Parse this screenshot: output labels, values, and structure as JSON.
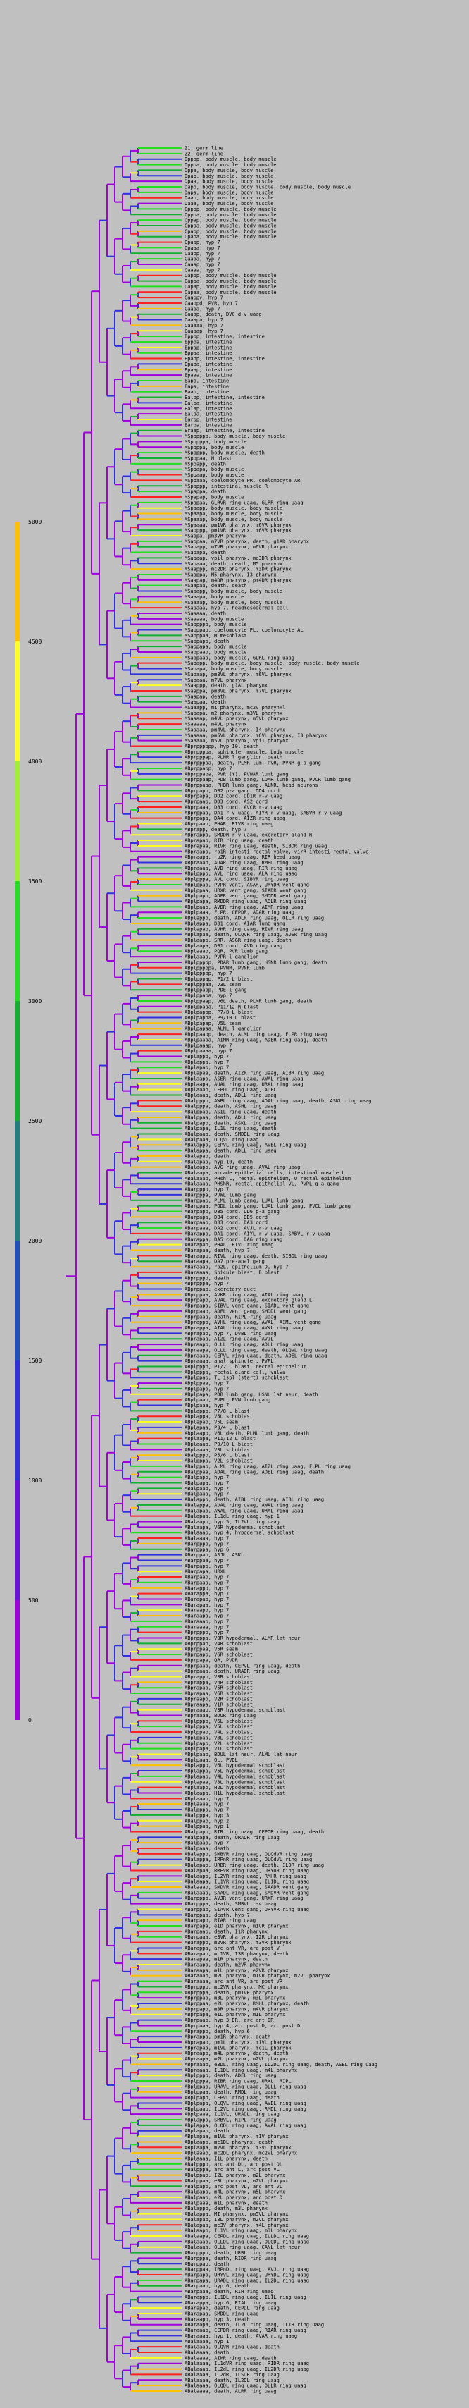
{
  "legend": {
    "title": "",
    "ticks": [
      "0",
      "500",
      "1000",
      "1500",
      "2000",
      "2500",
      "3000",
      "3500",
      "4000",
      "4500",
      "5000"
    ],
    "colors": [
      "#a000e0",
      "#6a10e0",
      "#3030e0",
      "#2050c0",
      "#208080",
      "#10b030",
      "#20e020",
      "#a0f030",
      "#ffff20",
      "#ffc000",
      "#ff6000"
    ]
  },
  "tree": {
    "branch_colors": [
      "#a000e0",
      "#3030e0",
      "#10b030",
      "#20e020",
      "#ffff20",
      "#ffc000",
      "#ff2020"
    ],
    "leaves": [
      "Z1, germ line",
      "Z2, germ line",
      "Dpppp, body muscle, body muscle",
      "Dpppa, body muscle, body muscle",
      "Dppa, body muscle, body muscle",
      "Dpap, body muscle, body muscle",
      "Dpaa, body muscle, body muscle",
      "Dapp, body muscle, body muscle, body muscle, body muscle",
      "Dapa, body muscle, body muscle",
      "Daap, body muscle, body muscle",
      "Daaa, body muscle, body muscle",
      "Cpppp, body muscle, body muscle",
      "Cpppa, body muscle, body muscle",
      "Cppap, body muscle, body muscle",
      "Cppaa, body muscle, body muscle",
      "Cpapp, body muscle, body muscle",
      "Cpapa, body muscle, body muscle",
      "Cpaap, hyp 7",
      "Cpaaa, hyp 7",
      "Caapp, hyp 7",
      "Caapa, hyp 7",
      "Caaap, hyp 7",
      "Caaaa, hyp 7",
      "Cappp, body muscle, body muscle",
      "Cappa, body muscle, body muscle",
      "Capap, body muscle, body muscle",
      "Capaa, body muscle, body muscle",
      "Caappv, hyp 7",
      "Caappd, PVR, hyp 7",
      "Caapa, hyp 7",
      "Caaap, death, DVC d-v uaag",
      "Caaapa, hyp 7",
      "Caaaaa, hyp 7",
      "Caaaap, hyp 7",
      "Epppp, intestine, intestine",
      "Epppa, intestine",
      "Eppap, intestine",
      "Eppaa, intestine",
      "Epapp, intestine, intestine",
      "Epapa, intestine",
      "Epaap, intestine",
      "Epaaa, intestine",
      "Eapp, intestine",
      "Eapa, intestine",
      "Eaap, intestine",
      "Ealpp, intestine, intestine",
      "Ealpa, intestine",
      "Ealap, intestine",
      "Ealaa, intestine",
      "Earpp, intestine",
      "Earpa, intestine",
      "Eraap, intestine, intestine",
      "MSpppppp, body muscle, body muscle",
      "MSpppppa, body muscle",
      "MSppppa, body muscle",
      "MSppppp, body muscle, death",
      "MSpppaa, M blast",
      "MSppapp, death",
      "MSppapa, body muscle",
      "MSppaap, body muscle",
      "MSppaaa, coelomocyte PR, coelomocyte AR",
      "MSpappp, intestinal muscle R",
      "MSpappa, death",
      "MSpapap, body muscle",
      "MSpapaa, GLRVR ring uaag, GLRR ring uaag",
      "MSpaapp, body muscle, body muscle",
      "MSpaapa, body muscle, body muscle",
      "MSpaaap, body muscle, body muscle",
      "MSpaaaa, pm1VR pharynx, m6VR pharynx",
      "MSapppp, pm1VR pharynx, m6VR pharynx",
      "MSappa, pm3VR pharynx",
      "MSappaa, m7VR pharynx, death, g1AR pharynx",
      "MSapapp, m7VR pharynx, m6VR pharynx",
      "MSapapa, death",
      "MSapaap, vpil pharynx, mc3DR pharynx",
      "MSapaaa, death, death, M5 pharynx",
      "MSaappp, mc2DR pharynx, m3DR pharynx",
      "MSaappa, M5 pharynx, I3 pharynx",
      "MSaapap, m4DR pharynx, pm4DR pharynx",
      "MSaapaa, death, death",
      "MSaaapp, body muscle, body muscle",
      "MSaaapa, body muscle",
      "MSaaaap, body muscle, body muscle",
      "MSaaaaa, hyp 7, headmesodermal cell",
      "MSaaaaa, death",
      "MSaaaaa, body muscle",
      "MSappppp, body muscle",
      "MSapppap, coelomocyte PL, coelomocyte AL",
      "MSapppaa, M mesoblast",
      "MSappapp, death",
      "MSappapa, body muscle",
      "MSappaap, body muscle",
      "MSappaaa, body muscle, GLRL ring uaag",
      "MSapapp, body muscle, body muscle, body muscle, body muscle",
      "MSapapa, body muscle, body muscle",
      "MSapaap, pm3VL pharynx, m6VL pharynx",
      "MSapaaa, m7VL pharynx",
      "MSaappp, death, g1AL pharynx",
      "MSaappa, pm3VL pharynx, m7VL pharynx",
      "MSaapap, death",
      "MSaapaa, death",
      "MSaaapp, m1 pharynx, mc2V pharynxl",
      "MSaaapa, m2 pharynx, m3VL pharynx",
      "MSaaaap, m4VL pharynx, m5VL pharynx",
      "MSaaaaa, m4VL pharynx",
      "MSaaaaa, pm4VL pharynx, I4 pharynx",
      "MSaaaaa, pm5VL pharynx, m6VL pharynx, I3 pharynx",
      "MSaaaaa, m5VL pharynx, vpi1 pharynx",
      "ABprpppppp, hyp 10, death",
      "ABprppppa, sphincter muscle, body muscle",
      "ABprpppap, PLNR l ganglion, death",
      "ABprpppaa, death, PLMR lum, PVR, PVNR g-a gang",
      "ABprppapp, hyp 7",
      "ABprppapa, PVR (Y), PVWAR lumb gang",
      "ABprppaap, PDB lumb gang, LUAR lumb gang, PVCR lumb gang",
      "ABprppaaa, PHBR lumb gang, ALNR, head neurons",
      "ABprpapp, DB2 p-a gang, DD4 cord",
      "ABprpapa, DD2 cord, DD1R r-v uaag",
      "ABprpaap, DD3 cord, AS2 cord",
      "ABprpaaa, DB3 cord, AVCR r-v uaag",
      "ABprppaa, DA1 r-v uaag, AIYR r-v uaag, SABVR r-v uaag",
      "ABprpapa, DA4 cord, AIZR ring uaag",
      "ABprpaap, PHAR, RIVR ring uaag",
      "ABprapp, death, hyp 7",
      "ABprappa, SMDDR r-v uaag, excretory gland R",
      "ABprapap, RIR ring uaag, death",
      "ABprapaa, RIVR ring uaag, death, SIBDR ring uaag",
      "ABpraapp, rp1R intesti-rectal valve, virR intesti-rectal valve",
      "ABpraapa, rp2R ring uaag, RIR head uaag",
      "ABpraaap, AUAR ring uaag, RMED ring uaag",
      "ABpraaaa, AVD ring uaag, RIR ring uaag",
      "ABplpppp, AVL ring uaag, ALA ring uaag",
      "ABplpppa, AVL cord, SIBVR ring uaag",
      "ABplppap, PVPR vent, ASAR, URYDR vent gang",
      "ABplppaa, URXR vent gang, SIADR vent gang",
      "ABplpapp, ADFR vent gang, SMDDR vent gang",
      "ABplpapa, RMDDR ring uaag, ADLR ring uaag",
      "ABplpaap, AVDR ring uaag, AIMR ring uaag",
      "ABplpaaa, FLPR, CEPDR, ADAR ring uaag",
      "ABplappp, death, ADLR ring uaag, OLLR ring uaag",
      "ABplappa, DB1 cord, AIAR lumb gang",
      "ABplapap, AVHR ring uaag, RIVR ring uaag",
      "ABplapaa, death, OLQVR ring uaag, ADER ring uaag",
      "ABplaapp, SRR, ASGR ring uaag, death",
      "ABplaapa, DB1 cord, AVD ring uaag",
      "ABplaaap, PQR, PVR lumb gang",
      "ABplaaaa, PVPR l ganglion",
      "ABplppppp, PDAR lumb gang, HSNR lumb gang, death",
      "ABplpppppa, PVWR, PVNR lumb",
      "ABplppppp, hyp 7",
      "ABplpppap, P1/2 L blast",
      "ABplpppaa, V3L seam",
      "ABplppapp, PDE l gang",
      "ABplppapa, hyp 7",
      "ABplppaap, V6L death, PLMR lumb gang, death",
      "ABplppaaa, P11/12 R blast",
      "ABplpappp, P7/8 L blast",
      "ABplpappa, P9/10 L blast",
      "ABplpapap, V5L seam",
      "ABplpapaa, ALNL l ganglion",
      "ABplpaapp, death, ALML ring uaag, FLPR ring uaag",
      "ABplpaapa, AIMR ring uaag, ADER ring uaag, death",
      "ABplpaaap, hyp 7",
      "ABplpaaaa, hyp 7",
      "ABplappp, hyp 7",
      "ABplappa, hyp 7",
      "ABplapap, hyp 7",
      "ABplapaa, death, AIZR ring uaag, AIBR ring uaag",
      "ABplaapp, ASER ring uaag, AWAL ring uaag",
      "ABplaapa, AUAL ring uaag, URAL ring uaag",
      "ABplaaap, CEPDL ring uaag, ADFL",
      "ABplaaaa, death, ADLL ring uaag",
      "ABalpppp, AWBL ring uaag, ADAL ring uaag, death, ASKL ring uaag",
      "ABalpppa, death, ASHL ring uaag",
      "ABalppap, ASIL ring uaag, death",
      "ABalppaa, death, ADLL ring uaag",
      "ABalpapp, death, ASKL ring uaag",
      "ABalpapa, IL1L ring uaag, death",
      "ABalpaap, death, SMDDL ring uaag",
      "ABalpaaa, OLQVL ring uaag",
      "ABalappp, CEPVL ring uaag, AVEL ring uaag",
      "ABalappa, death, ADLL ring uaag",
      "ABalapap, death",
      "ABalapaa, hyp 10, death",
      "ABalaapp, AVG ring uaag, AVAL ring uaag",
      "ABalaapa, arcade epithelial cells, intestinal muscle L",
      "ABalaaap, PHsh L, rectal epithelium, U rectal epithelium",
      "ABalaaaa, PHShR, rectal epithelial VL, PVPL g-a gang",
      "ABarpppp, hyp 7",
      "ABarpppa, PVWL lumb gang",
      "ABarppap, PLML lumb gang, LUAL lumb gang",
      "ABarppaa, PQDL lumb gang, LUAL lumb gang, PVCL lumb gang",
      "ABarpapp, DB5 cord, DD6 p-a gang",
      "ABarpapa, DB4 cord, DD5 cord",
      "ABarpaap, DB3 cord, DA3 cord",
      "ABarpaaa, DA2 cord, AVJL r-v uaag",
      "ABarappp, DA1 cord, AIYL r-v uaag, SABVL r-v uaag",
      "ABarappa, DA5 cord, DA6 ring uaag",
      "ABarapap, PHAL, RIVL ring uaag",
      "ABarapaa, death, hyp 7",
      "ABaraapp, RIVL ring uaag, death, SIBDL ring uaag",
      "ABaraapa, DA7 pre-anal gang",
      "ABaraaap, rp2L, epithelium D, hyp 7",
      "ABaraaaa, Spicule blast, B blast",
      "ABprpppp, death",
      "ABprpppa, hyp 7",
      "ABprppap, excretory duct",
      "ABprppaa, AVKR ring uaag, AIAL ring uaag",
      "ABprpapp, AVAL ring uaag, excretory gland L",
      "ABprpapa, SIBVL vent gang, SIADL vent gang",
      "ABprpaap, ADFL vent gang, SMDDL vent gang",
      "ABprpaaa, death, RIPL ring uaag",
      "ABprappp, AVHL ring uaag, AVAL, AIML vent gang",
      "ABprappa, AIAL ring uaag, AVKL ring uaag",
      "ABprapap, hyp 7, DVBL ring uaag",
      "ABprapaa, AIZL ring uaag, AVJL",
      "ABpraapp, OLLL ring uaag, ADLL ring uaag",
      "ABpraapa, OLLL ring uaag, death, OLQVL ring uaag",
      "ABpraaap, CEPVL ring uaag, death, ADEL ring uaag",
      "ABpraaaa, anal sphincter, PVPL",
      "ABplpppp, P1/2 L blast, rectal epithelium",
      "ABplpppa, rectal gland cell, vulva",
      "ABplppap, TL ispl (start) schoblast",
      "ABplppaa, hyp 7",
      "ABplpapp, hyp 7",
      "ABplpapa, PDB lumb gang, HSNL lat neur, death",
      "ABplpaap, PVPL, PVN lumb gang",
      "ABplpaaa, hyp 7",
      "ABplappp, P7/8 L blast",
      "ABplappa, V5L schoblast",
      "ABplapap, V5L seam",
      "ABplapaa, P3/4 L blast",
      "ABplaapp, V6L death, PLML lumb gang, death",
      "ABplaapa, P11/12 L blast",
      "ABplaaap, P9/10 L blast",
      "ABplaaaa, V3L schoblast",
      "ABalpppp, P5/6 L blast",
      "ABalpppa, V2L schoblast",
      "ABalppap, ALML ring uaag, AIZL ring uaag, FLPL ring uaag",
      "ABalppaa, ADAL ring uaag, ADEL ring uaag, death",
      "ABalpapp, hyp 7",
      "ABalpapa, hyp 7",
      "ABalpaap, hyp 7",
      "ABalpaaa, hyp 7",
      "ABalappp, death, AIBL ring uaag, AIBL ring uaag",
      "ABalappa, AVAL ring uaag, AWAL ring uaag",
      "ABalapap, AWAL ring uaag, URAL ring uaag",
      "ABalapaa, IL1dL ring uaag, hyp 1",
      "ABalaapp, hyp 5, IL2VL ring uaag",
      "ABalaapa, V6R hypodermal schoblast",
      "ABalaaap, hyp 4, hypodermal schoblast",
      "ABalaaaa, hyp 7",
      "ABarpppp, hyp 7",
      "ABarpppa, hyp 6",
      "ABarppap, ASJL, ASKL",
      "ABarppaa, hyp 7",
      "ABarpapp, hyp 7",
      "ABarpapa, URXL",
      "ABarpaap, hyp 7",
      "ABarpaaa, hyp 7",
      "ABarappp, hyp 7",
      "ABarappa, hyp 7",
      "ABarapap, hyp 7",
      "ABarapaa, hyp 7",
      "ABaraapp, hyp 7",
      "ABaraapa, hyp 7",
      "ABaraaap, hyp 7",
      "ABaraaaa, hyp 7",
      "ABprpppp, hyp 7",
      "ABprpppa, V3R hypodermal, ALMR lat neur",
      "ABprppap, V4R schoblast",
      "ABprppaa, V5R seam",
      "ABprpapp, V6R schoblast",
      "ABprpapa, QR, PVDR",
      "ABprpaap, death, CEPVL ring uaag, death",
      "ABprpaaa, death, URADR ring uaag",
      "ABprappp, V3R schoblast",
      "ABprappa, V4R schoblast",
      "ABprapap, V5R schoblast",
      "ABprapaa, V6R schoblast",
      "ABpraapp, V2R schoblast",
      "ABpraapa, V1R schoblast",
      "ABpraaap, V3R hypodermal schoblast",
      "ABpraaaa, BDUR ring uaag",
      "ABplpppp, V6L schoblast",
      "ABplpppa, V5L schoblast",
      "ABplppap, V4L schoblast",
      "ABplppaa, V3L schoblast",
      "ABplpapp, V2L schoblast",
      "ABplpapa, V1L schoblast",
      "ABplpaap, BDUL lat neur, ALML lat neur",
      "ABplpaaa, QL, PVDL",
      "ABplappp, V6L hypodermal schoblast",
      "ABplappa, V5L hypodermal schoblast",
      "ABplapap, V4L hypodermal schoblast",
      "ABplapaa, V3L hypodermal schoblast",
      "ABplaapp, H2L hypodermal schoblast",
      "ABplaapa, H1L hypodermal schoblast",
      "ABplaaap, hyp 7",
      "ABplaaaa, hyp 7",
      "ABalpppp, hyp 7",
      "ABalpppa, hyp 3",
      "ABalppap, hyp 2",
      "ABalppaa, hyp 1",
      "ABalpapp, RIR ring uaag, CEPDR ring uaag, death",
      "ABalpapa, death, URADR ring uaag",
      "ABalpaap, hyp 7",
      "ABalpaaa, death",
      "ABalappp, SMBVR ring uaag, OLQdVR ring uaag",
      "ABalappa, IRPnR ring uaag, OLQdVL ring uaag",
      "ABalapap, URBR ring uaag, death, ILDR ring uaag",
      "ABalapaa, RMEVR ring uaag, URYDR ring uaag",
      "ABalaapp, IL2VR ring uaag, RMHR ring uaag",
      "ABalaapa, IL1VR ring uaag, IL1DL ring uaag",
      "ABalaaap, SMDVR ring uaag, SAADR vent gang",
      "ABalaaaa, SAADL ring uaag, SMDVR vent gang",
      "ABarpppp, AVJR vent gang, URXR ring uaag",
      "ABarpppa, death, SMBVL r-v uaag",
      "ABarppap, SIAVR vent gang, URYVR ring uaag",
      "ABarppaa, death, hyp 7",
      "ABarpapp, RIAR ring uaag",
      "ABarpapa, e1D pharynx, m1VR pharynx",
      "ABarpaap, death, I1R pharynx",
      "ABarpaaa, e3VR pharynx, I2R pharynx",
      "ABarappp, m2VR pharynx, m3VR pharynx",
      "ABarappa, arc ant VR, arc post V",
      "ABarapap, mc1VR, I3R pharynx, death",
      "ABarapaa, m1R pharynx, death",
      "ABaraapp, death, m2VR pharynx",
      "ABaraapa, m1L pharynx, e2VR pharynx",
      "ABaraaap, m2L pharynx, m1VR pharynx, m2VL pharynx",
      "ABaraaaa, arc ant VR, arc post VR",
      "ABprpppp, mc2VR pharynx, MC pharynx",
      "ABprpppa, death, pm1VR pharynx",
      "ABprppap, m3L pharynx, m3L pharynx",
      "ABprppaa, e2L pharynx, RMHL pharynx, death",
      "ABprpapp, m3R pharynx, m4VR pharynx",
      "ABprpapa, e1L pharynx, m1L pharynx",
      "ABprpaap, hyp 3 DR, arc ant DR",
      "ABprpaaa, hyp 4, arc post D, arc post DL",
      "ABprappp, death, hyp 6",
      "ABprappa, pm1R pharynx, death",
      "ABprapap, pm1L pharynx, m1VL pharynx",
      "ABprapaa, m1VL pharynx, mc1L pharynx",
      "ABpraapp, m4L pharynx, death, death",
      "ABpraapa, m2L pharynx, m2VL pharynx",
      "ABpraaap, e3DL, ring uaag, IL2DL ring uaag, death, ASEL ring uaag",
      "ABpraaaa, IL1DL ring uaag, m4L pharynx",
      "ABplpppp, death, ADEL ring uaag",
      "ABplpppa, RIBR ring uaag, URXL, RIPL",
      "ABplppap, URAVL ring uaag, OLLL ring uaag",
      "ABplppaa, death, RMDL ring uaag",
      "ABplpapp, CEPVL ring uaag, death",
      "ABplpapa, OLQVL ring uaag, AVEL ring uaag",
      "ABplpaap, IL2VL ring uaag, RMDL ring uaag",
      "ABplpaaa, IL1VL, URADL ring uaag",
      "ABplappp, SMBVL, RIPL ring uaag",
      "ABplappa, OLQDL ring uaag, AVAL ring uaag",
      "ABplapap, death",
      "ABplapaa, m1VL pharynx, m1V pharynx",
      "ABplaapp, mc1DL pharynx, death",
      "ABplaapa, m2VL pharynx, m3VL pharynx",
      "ABplaaap, mc2DL pharynx, mc2VL pharynx",
      "ABplaaaa, I1L pharynx, death",
      "ABalpppp, arc ant DL, arc post DL",
      "ABalpppa, arc ant L, arc post VL",
      "ABalppap, I2L pharynx, m2L pharynx",
      "ABalppaa, e3L pharynx, m2VL pharynx",
      "ABalpapp, arc post VL, arc ant VL",
      "ABalpapa, m4L pharynx, m5L pharynx",
      "ABalpaap, e2L pharynx, arc post D",
      "ABalpaaa, m1L pharynx, death",
      "ABalappp, death, m3L pharynx",
      "ABalappa, MI pharynx, pm5VL pharynx",
      "ABalapap, I3L pharynx, m2VL pharynx",
      "ABalapaa, mc3V pharynx, m4L pharynx",
      "ABalaapp, IL1VL ring uaag, m3L pharynx",
      "ABalaapa, CEPDL ring uaag, ILLDL ring uaag",
      "ABalaaap, OLLDL ring uaag, OLQDL ring uaag",
      "ABalaaaa, OLLL ring uaag, CANL lat neur",
      "ABarpppp, death, URBL ring uaag",
      "ABarpppa, death, RIDR ring uaag",
      "ABarppap, death",
      "ABarppaa, IRPnDL ring uaag, AVJL ring uaag",
      "ABarpapp, URYVL ring uaag, URYDL ring uaag",
      "ABarpapa, URADL ring uaag, IL2DL ring uaag",
      "ABarpaap, hyp 6, death",
      "ABarpaaa, death, RIH ring uaag",
      "ABarappp, IL1DL ring uaag, IL1L ring uaag",
      "ABarappa, hyp 6, RIAL ring uaag",
      "ABarapap, death, CEPDL ring uaag",
      "ABarapaa, SMDDL ring uaag",
      "ABaraapp, hyp 3, death",
      "ABaraapa, death, IL2L ring uaag, IL1R ring uaag",
      "ABaraaap, CEPDR ring uaag, RIAR ring uaag",
      "ABaraaaa, hyp 1, death, AVAR ring uaag",
      "ABalaaaa, hyp 1",
      "ABalaaaa, OLQVR ring uaag, death",
      "ABalaaaa, death",
      "ABalaaaa, AIMR ring uaag, death",
      "ABalaaaa, IL1dVR ring uaag, RIDR ring uaag",
      "ABalaaaa, IL2dL ring uaag, IL2DR ring uaag",
      "ABalaaaa, IL2dR, ILSDR ring uaag",
      "ABalaaaa, death, IL2DL ring uaag",
      "ABalaaaa, OLQDL ring uaag, OLLR ring uaag",
      "ABalaaaa, death, ALRR ring uaag"
    ]
  }
}
